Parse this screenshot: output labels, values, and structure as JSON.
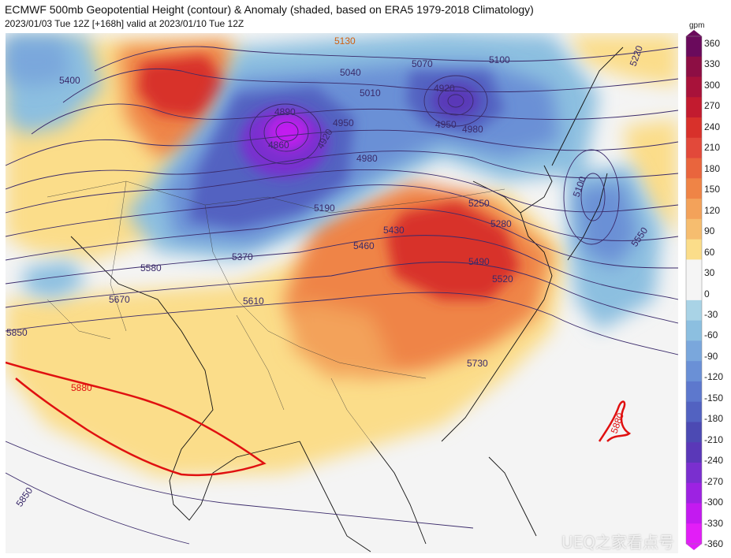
{
  "header": {
    "title": "ECMWF 500mb Geopotential Height (contour) & Anomaly (shaded, based on ERA5 1979-2018 Climatology)",
    "subtitle": "2023/01/03 Tue 12Z [+168h] valid at 2023/01/10 Tue 12Z"
  },
  "colorbar": {
    "unit": "gpm",
    "ticks": [
      "360",
      "330",
      "300",
      "270",
      "240",
      "210",
      "180",
      "150",
      "120",
      "90",
      "60",
      "30",
      "0",
      "-30",
      "-60",
      "-90",
      "-120",
      "-150",
      "-180",
      "-210",
      "-240",
      "-270",
      "-300",
      "-330",
      "-360"
    ],
    "colors": [
      "#6a0a5c",
      "#8d0e44",
      "#a8123a",
      "#c21b2f",
      "#d8312b",
      "#e2493a",
      "#e9653d",
      "#ef8446",
      "#f3a25a",
      "#f6bd6f",
      "#fbdd8a",
      "#f5f5f5",
      "#f5f5f5",
      "#a9d3e6",
      "#8cbfe0",
      "#7aa7dc",
      "#6a90d6",
      "#5d78cd",
      "#5262c1",
      "#4c4ab3",
      "#5a38b8",
      "#7a2fcf",
      "#9d22e2",
      "#c31af0",
      "#e21ef7"
    ]
  },
  "map": {
    "contour_labels": [
      "5130",
      "5070",
      "5100",
      "5220",
      "5040",
      "5010",
      "4920",
      "4890",
      "4950",
      "4980",
      "4860",
      "4920",
      "4950",
      "4980",
      "5400",
      "5190",
      "5100",
      "5250",
      "5280",
      "5430",
      "5460",
      "5490",
      "5520",
      "5370",
      "5550",
      "5580",
      "5610",
      "5670",
      "5850",
      "5880",
      "5730",
      "5880",
      "5850"
    ],
    "anomaly_colors": {
      "warm_strong": "#d8312b",
      "warm_mid": "#ef8446",
      "warm_light": "#fbdd8a",
      "cold_light": "#8cbfe0",
      "cold_mid": "#6a90d6",
      "cold_strong": "#5262c1",
      "cold_extreme": "#9d22e2",
      "neutral": "#f4f4f4"
    },
    "contour_color": "#3a2a6a",
    "highlight_contour_color": "#e01010"
  },
  "watermark": "UEQ之家看点号"
}
